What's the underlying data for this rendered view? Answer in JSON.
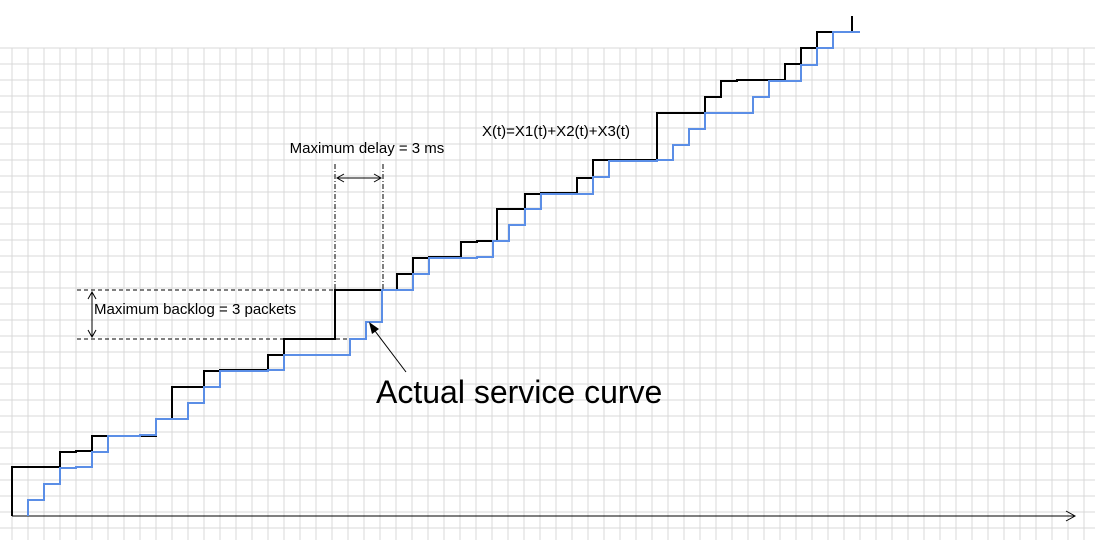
{
  "labels": {
    "arrival_curve": "X(t)=X1(t)+X2(t)+X3(t)",
    "max_delay": "Maximum delay = 3 ms",
    "max_backlog": "Maximum backlog = 3 packets",
    "service_curve": "Actual service curve"
  },
  "colors": {
    "grid": "#d9d9d9",
    "axis": "#000000",
    "arrival": "#000000",
    "service": "#5b8ee6"
  }
}
